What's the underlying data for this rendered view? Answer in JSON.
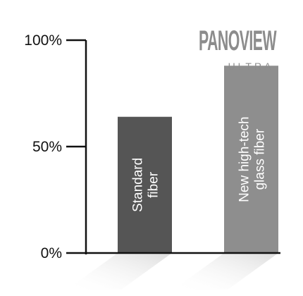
{
  "logo": {
    "brand": "PANOVIEW",
    "sub": "ULTRA",
    "color": "#8c8c8c"
  },
  "chart_data": {
    "type": "bar",
    "categories": [
      "Standard fiber",
      "New high-tech glass fiber"
    ],
    "category_lines": [
      [
        "Standard",
        "fiber"
      ],
      [
        "New high-tech",
        "glass fiber"
      ]
    ],
    "values": [
      64,
      88
    ],
    "ylim": [
      0,
      100
    ],
    "yticks": [
      0,
      50,
      100
    ],
    "ytick_labels": [
      "0%",
      "50%",
      "100%"
    ],
    "title": "",
    "xlabel": "",
    "ylabel": "",
    "grid": false,
    "colors": [
      "#555555",
      "#8e8e8e"
    ],
    "axis_color": "#111111",
    "shadow_color": "#e3e3e3"
  }
}
